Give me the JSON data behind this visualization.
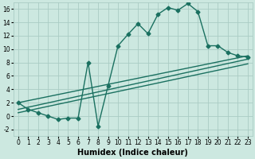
{
  "xlabel": "Humidex (Indice chaleur)",
  "bg_color": "#cce8e0",
  "line_color": "#1a7060",
  "grid_color": "#aaccc4",
  "xlim": [
    -0.5,
    23.5
  ],
  "ylim": [
    -3,
    17
  ],
  "xticks": [
    0,
    1,
    2,
    3,
    4,
    5,
    6,
    7,
    8,
    9,
    10,
    11,
    12,
    13,
    14,
    15,
    16,
    17,
    18,
    19,
    20,
    21,
    22,
    23
  ],
  "yticks": [
    -2,
    0,
    2,
    4,
    6,
    8,
    10,
    12,
    14,
    16
  ],
  "series1_x": [
    0,
    1,
    2,
    3,
    4,
    5,
    6,
    7,
    8,
    9,
    10,
    11,
    12,
    13,
    14,
    15,
    16,
    17,
    18,
    19,
    20,
    21,
    22,
    23
  ],
  "series1_y": [
    2.0,
    1.0,
    0.5,
    0.0,
    -0.5,
    -0.3,
    -0.3,
    8.0,
    -1.5,
    4.5,
    10.5,
    12.2,
    13.8,
    12.3,
    15.2,
    16.2,
    15.8,
    16.8,
    15.6,
    10.5,
    10.5,
    9.5,
    9.0,
    8.8
  ],
  "line1_x": [
    0,
    23
  ],
  "line1_y": [
    2.0,
    9.0
  ],
  "line2_x": [
    0,
    23
  ],
  "line2_y": [
    1.0,
    8.5
  ],
  "line3_x": [
    0,
    23
  ],
  "line3_y": [
    0.5,
    7.8
  ],
  "markersize": 2.5,
  "linewidth": 1.0,
  "tick_labelsize": 5.5,
  "xlabel_fontsize": 7.0
}
